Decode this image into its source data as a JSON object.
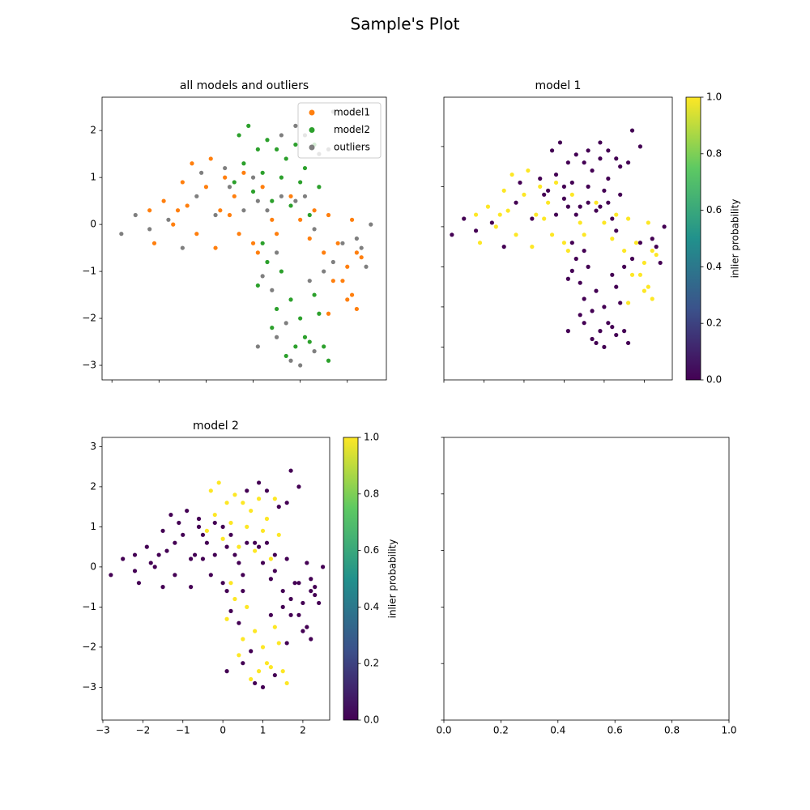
{
  "title": "Sample's Plot",
  "chart_data": [
    {
      "type": "scatter",
      "title": "all models and outliers",
      "legend": "upper right",
      "xlim": [
        -3.21,
        2.83
      ],
      "ylim": [
        -3.31,
        2.71
      ],
      "xticks": [
        -3,
        -2,
        -1,
        0,
        1,
        2
      ],
      "xtick_labels": false,
      "yticks": [
        {
          "value": -3,
          "label": "−3"
        },
        {
          "value": -2,
          "label": "−2"
        },
        {
          "value": -1,
          "label": "−1"
        },
        0,
        1,
        2
      ],
      "ytick_labels": true,
      "series": [
        {
          "name": "model1",
          "color": "#ff7f0e",
          "x": [
            -2.2,
            -2.1,
            -1.9,
            -1.7,
            -1.5,
            -1.4,
            -1.3,
            -1.2,
            -1.0,
            -0.9,
            -0.8,
            -0.7,
            -0.6,
            -0.4,
            -0.3,
            -0.2,
            0.0,
            0.2,
            0.4,
            0.5,
            0.8,
            1.0,
            1.2,
            1.3,
            1.5,
            1.6,
            1.8,
            1.9,
            2.0,
            2.1,
            2.2,
            1.6,
            2.2,
            2.0,
            2.1,
            2.3,
            1.7,
            0.1,
            -0.5,
            -1.6
          ],
          "y": [
            0.3,
            -0.4,
            0.5,
            0.0,
            0.9,
            0.4,
            1.3,
            -0.2,
            0.8,
            1.4,
            -0.5,
            0.3,
            1.0,
            0.6,
            -0.2,
            1.1,
            -0.4,
            0.8,
            0.1,
            -0.2,
            0.6,
            0.1,
            -0.3,
            0.3,
            -0.6,
            0.2,
            -0.4,
            -1.2,
            -0.9,
            -1.5,
            -0.6,
            -1.9,
            -1.8,
            -1.6,
            0.1,
            -0.7,
            -1.2,
            -0.6,
            0.2,
            0.3
          ]
        },
        {
          "name": "model2",
          "color": "#2ca02c",
          "x": [
            -0.3,
            -0.1,
            0.1,
            0.3,
            0.5,
            0.7,
            0.9,
            1.1,
            1.3,
            -0.2,
            0.2,
            0.6,
            1.0,
            0.8,
            1.2,
            0.4,
            -0.4,
            0.0,
            1.4,
            0.3,
            0.1,
            0.6,
            0.5,
            0.4,
            0.8,
            1.0,
            1.3,
            1.4,
            1.1,
            0.9,
            1.5,
            1.6,
            0.7,
            1.2,
            0.2
          ],
          "y": [
            1.9,
            2.1,
            1.6,
            1.8,
            1.6,
            1.4,
            1.7,
            1.2,
            1.7,
            1.3,
            1.1,
            1.0,
            0.9,
            0.4,
            0.2,
            0.5,
            0.9,
            0.7,
            0.8,
            -0.8,
            -1.3,
            -1.0,
            -1.8,
            -2.2,
            -1.6,
            -2.0,
            -1.5,
            -1.9,
            -2.4,
            -2.6,
            -2.6,
            -2.9,
            -2.8,
            -2.5,
            -0.4
          ]
        },
        {
          "name": "outliers",
          "color": "#7f7f7f",
          "x": [
            -2.8,
            -2.5,
            -2.2,
            -1.8,
            -1.5,
            -1.2,
            -1.1,
            -0.8,
            -0.5,
            -0.2,
            0.1,
            0.3,
            0.6,
            0.9,
            1.1,
            1.3,
            1.5,
            1.7,
            1.9,
            2.2,
            2.4,
            2.5,
            2.3,
            0.5,
            0.2,
            0.4,
            0.7,
            0.1,
            0.5,
            0.8,
            1.0,
            1.3,
            1.2,
            0.6,
            0.9,
            1.1,
            1.4,
            1.7,
            1.6,
            1.9,
            -0.6,
            0.0
          ],
          "y": [
            -0.2,
            0.2,
            -0.1,
            0.1,
            -0.5,
            0.6,
            1.1,
            0.2,
            0.8,
            0.3,
            0.5,
            0.3,
            0.6,
            0.5,
            0.6,
            -0.1,
            -1.0,
            -0.8,
            -0.4,
            -0.3,
            -0.9,
            0.0,
            -0.5,
            -0.6,
            -1.1,
            -1.4,
            -2.1,
            -2.6,
            -2.4,
            -2.9,
            -3.0,
            -2.7,
            -1.2,
            1.9,
            2.1,
            1.9,
            1.5,
            2.4,
            1.6,
            2.0,
            1.2,
            1.0
          ]
        }
      ]
    },
    {
      "type": "scatter",
      "title": "model 1",
      "colormap": "viridis",
      "xlim": [
        -3.0,
        2.7
      ],
      "ylim": [
        -3.82,
        3.23
      ],
      "xticks": [
        -3,
        -2,
        -1,
        0,
        1,
        2
      ],
      "xtick_labels": false,
      "yticks": [
        -3,
        -2,
        -1,
        0,
        1,
        2
      ],
      "ytick_labels": false,
      "x": [
        -2.2,
        -2.1,
        -1.9,
        -1.7,
        -1.5,
        -1.4,
        -1.3,
        -1.2,
        -1.0,
        -0.9,
        -0.8,
        -0.7,
        -0.6,
        -0.4,
        -0.3,
        -0.2,
        0.0,
        0.2,
        0.4,
        0.5,
        0.8,
        1.0,
        1.2,
        1.3,
        1.5,
        1.6,
        1.8,
        1.9,
        2.0,
        2.1,
        2.2,
        1.6,
        2.2,
        2.0,
        2.1,
        2.3,
        1.7,
        0.1,
        -0.5,
        -1.6,
        -0.3,
        -0.1,
        0.1,
        0.3,
        0.5,
        0.7,
        0.9,
        1.1,
        1.3,
        -0.2,
        0.2,
        0.6,
        1.0,
        0.8,
        1.2,
        0.4,
        -0.4,
        0.0,
        1.4,
        0.3,
        0.1,
        0.6,
        0.5,
        0.4,
        0.8,
        1.0,
        1.3,
        1.4,
        1.1,
        0.9,
        1.5,
        1.6,
        0.7,
        1.2,
        0.2,
        -2.8,
        -2.5,
        -2.2,
        -1.8,
        -1.5,
        -1.2,
        -1.1,
        -0.8,
        -0.5,
        -0.2,
        0.1,
        0.3,
        0.6,
        0.9,
        1.1,
        1.3,
        1.5,
        1.7,
        1.9,
        2.2,
        2.4,
        2.5,
        2.3,
        0.5,
        0.2,
        0.4,
        0.7,
        0.1,
        0.5,
        0.8,
        1.0,
        1.3,
        1.2,
        0.6,
        0.9,
        1.1,
        1.4,
        1.7,
        1.6,
        1.9,
        -0.6,
        0.0
      ],
      "y": [
        0.3,
        -0.4,
        0.5,
        0.0,
        0.9,
        0.4,
        1.3,
        -0.2,
        0.8,
        1.4,
        -0.5,
        0.3,
        1.0,
        0.6,
        -0.2,
        1.1,
        -0.4,
        0.8,
        0.1,
        -0.2,
        0.6,
        0.1,
        -0.3,
        0.3,
        -0.6,
        0.2,
        -0.4,
        -1.2,
        -0.9,
        -1.5,
        -0.6,
        -1.9,
        -1.8,
        -1.6,
        0.1,
        -0.7,
        -1.2,
        -0.6,
        0.2,
        0.3,
        1.9,
        2.1,
        1.6,
        1.8,
        1.6,
        1.4,
        1.7,
        1.2,
        1.7,
        1.3,
        1.1,
        1.0,
        0.9,
        0.4,
        0.2,
        0.5,
        0.9,
        0.7,
        0.8,
        -0.8,
        -1.3,
        -1.0,
        -1.8,
        -2.2,
        -1.6,
        -2.0,
        -1.5,
        -1.9,
        -2.4,
        -2.6,
        -2.6,
        -2.9,
        -2.8,
        -2.5,
        -0.4,
        -0.2,
        0.2,
        -0.1,
        0.1,
        -0.5,
        0.6,
        1.1,
        0.2,
        0.8,
        0.3,
        0.5,
        0.3,
        0.6,
        0.5,
        0.6,
        -0.1,
        -1.0,
        -0.8,
        -0.4,
        -0.3,
        -0.9,
        0.0,
        -0.5,
        -0.6,
        -1.1,
        -1.4,
        -2.1,
        -2.6,
        -2.4,
        -2.9,
        -3.0,
        -2.7,
        -1.2,
        1.9,
        2.1,
        1.9,
        1.5,
        2.4,
        1.6,
        2.0,
        1.2,
        1.0
      ],
      "values": [
        1,
        1,
        1,
        1,
        1,
        1,
        1,
        1,
        1,
        1,
        1,
        1,
        1,
        1,
        1,
        1,
        1,
        1,
        1,
        1,
        1,
        1,
        1,
        1,
        1,
        1,
        1,
        1,
        1,
        1,
        1,
        1,
        1,
        1,
        1,
        1,
        1,
        1,
        1,
        1,
        0,
        0,
        0,
        0,
        0,
        0,
        0,
        0,
        0,
        0,
        0,
        0,
        0,
        0,
        0,
        0,
        0,
        0,
        0,
        0,
        0,
        0,
        0,
        0,
        0,
        0,
        0,
        0,
        0,
        0,
        0,
        0,
        0,
        0,
        0,
        0,
        0,
        0,
        0,
        0,
        0,
        0,
        0,
        0,
        0,
        0,
        0,
        0,
        0,
        0,
        0,
        0,
        0,
        0,
        0,
        0,
        0,
        0,
        0,
        0,
        0,
        0,
        0,
        0,
        0,
        0,
        0,
        0,
        0,
        0,
        0,
        0,
        0,
        0,
        0,
        0,
        0
      ],
      "colorbar": {
        "label": "inlier probability",
        "lim": [
          0,
          1
        ],
        "ticks": [
          {
            "value": 0,
            "label": "0.0"
          },
          {
            "value": 0.2,
            "label": "0.2"
          },
          {
            "value": 0.4,
            "label": "0.4"
          },
          {
            "value": 0.6,
            "label": "0.6"
          },
          {
            "value": 0.8,
            "label": "0.8"
          },
          {
            "value": 1,
            "label": "1.0"
          }
        ]
      }
    },
    {
      "type": "scatter",
      "title": "model 2",
      "colormap": "viridis",
      "xlim": [
        -3.02,
        2.67
      ],
      "ylim": [
        -3.82,
        3.23
      ],
      "xticks": [
        {
          "value": -3,
          "label": "−3"
        },
        {
          "value": -2,
          "label": "−2"
        },
        {
          "value": -1,
          "label": "−1"
        },
        0,
        1,
        2
      ],
      "xtick_labels": true,
      "yticks": [
        {
          "value": -3,
          "label": "−3"
        },
        {
          "value": -2,
          "label": "−2"
        },
        {
          "value": -1,
          "label": "−1"
        },
        0,
        1,
        2,
        3
      ],
      "ytick_labels": true,
      "x": [
        -2.2,
        -2.1,
        -1.9,
        -1.7,
        -1.5,
        -1.4,
        -1.3,
        -1.2,
        -1.0,
        -0.9,
        -0.8,
        -0.7,
        -0.6,
        -0.4,
        -0.3,
        -0.2,
        0.0,
        0.2,
        0.4,
        0.5,
        0.8,
        1.0,
        1.2,
        1.3,
        1.5,
        1.6,
        1.8,
        1.9,
        2.0,
        2.1,
        2.2,
        1.6,
        2.2,
        2.0,
        2.1,
        2.3,
        1.7,
        0.1,
        -0.5,
        -1.6,
        -0.3,
        -0.1,
        0.1,
        0.3,
        0.5,
        0.7,
        0.9,
        1.1,
        1.3,
        -0.2,
        0.2,
        0.6,
        1.0,
        0.8,
        1.2,
        0.4,
        -0.4,
        0.0,
        1.4,
        0.3,
        0.1,
        0.6,
        0.5,
        0.4,
        0.8,
        1.0,
        1.3,
        1.4,
        1.1,
        0.9,
        1.5,
        1.6,
        0.7,
        1.2,
        0.2,
        -2.8,
        -2.5,
        -2.2,
        -1.8,
        -1.5,
        -1.2,
        -1.1,
        -0.8,
        -0.5,
        -0.2,
        0.1,
        0.3,
        0.6,
        0.9,
        1.1,
        1.3,
        1.5,
        1.7,
        1.9,
        2.2,
        2.4,
        2.5,
        2.3,
        0.5,
        0.2,
        0.4,
        0.7,
        0.1,
        0.5,
        0.8,
        1.0,
        1.3,
        1.2,
        0.6,
        0.9,
        1.1,
        1.4,
        1.7,
        1.6,
        1.9,
        -0.6,
        0.0
      ],
      "y": [
        0.3,
        -0.4,
        0.5,
        0.0,
        0.9,
        0.4,
        1.3,
        -0.2,
        0.8,
        1.4,
        -0.5,
        0.3,
        1.0,
        0.6,
        -0.2,
        1.1,
        -0.4,
        0.8,
        0.1,
        -0.2,
        0.6,
        0.1,
        -0.3,
        0.3,
        -0.6,
        0.2,
        -0.4,
        -1.2,
        -0.9,
        -1.5,
        -0.6,
        -1.9,
        -1.8,
        -1.6,
        0.1,
        -0.7,
        -1.2,
        -0.6,
        0.2,
        0.3,
        1.9,
        2.1,
        1.6,
        1.8,
        1.6,
        1.4,
        1.7,
        1.2,
        1.7,
        1.3,
        1.1,
        1.0,
        0.9,
        0.4,
        0.2,
        0.5,
        0.9,
        0.7,
        0.8,
        -0.8,
        -1.3,
        -1.0,
        -1.8,
        -2.2,
        -1.6,
        -2.0,
        -1.5,
        -1.9,
        -2.4,
        -2.6,
        -2.6,
        -2.9,
        -2.8,
        -2.5,
        -0.4,
        -0.2,
        0.2,
        -0.1,
        0.1,
        -0.5,
        0.6,
        1.1,
        0.2,
        0.8,
        0.3,
        0.5,
        0.3,
        0.6,
        0.5,
        0.6,
        -0.1,
        -1.0,
        -0.8,
        -0.4,
        -0.3,
        -0.9,
        0.0,
        -0.5,
        -0.6,
        -1.1,
        -1.4,
        -2.1,
        -2.6,
        -2.4,
        -2.9,
        -3.0,
        -2.7,
        -1.2,
        1.9,
        2.1,
        1.9,
        1.5,
        2.4,
        1.6,
        2.0,
        1.2,
        1.0
      ],
      "values": [
        0,
        0,
        0,
        0,
        0,
        0,
        0,
        0,
        0,
        0,
        0,
        0,
        0,
        0,
        0,
        0,
        0,
        0,
        0,
        0,
        0,
        0,
        0,
        0,
        0,
        0,
        0,
        0,
        0,
        0,
        0,
        0,
        0,
        0,
        0,
        0,
        0,
        0,
        0,
        0,
        1,
        1,
        1,
        1,
        1,
        1,
        1,
        1,
        1,
        1,
        1,
        1,
        1,
        1,
        1,
        1,
        1,
        1,
        1,
        1,
        1,
        1,
        1,
        1,
        1,
        1,
        1,
        1,
        1,
        1,
        1,
        1,
        1,
        1,
        1,
        0,
        0,
        0,
        0,
        0,
        0,
        0,
        0,
        0,
        0,
        0,
        0,
        0,
        0,
        0,
        0,
        0,
        0,
        0,
        0,
        0,
        0,
        0,
        0,
        0,
        0,
        0,
        0,
        0,
        0,
        0,
        0,
        0,
        0,
        0,
        0,
        0,
        0,
        0,
        0,
        0,
        0
      ],
      "colorbar": {
        "label": "inlier probability",
        "lim": [
          0,
          1
        ],
        "ticks": [
          {
            "value": 0,
            "label": "0.0"
          },
          {
            "value": 0.2,
            "label": "0.2"
          },
          {
            "value": 0.4,
            "label": "0.4"
          },
          {
            "value": 0.6,
            "label": "0.6"
          },
          {
            "value": 0.8,
            "label": "0.8"
          },
          {
            "value": 1,
            "label": "1.0"
          }
        ]
      }
    },
    {
      "type": "empty",
      "xlim": [
        0,
        1
      ],
      "ylim": [
        0,
        1
      ],
      "xticks": [
        {
          "value": 0,
          "label": "0.0"
        },
        {
          "value": 0.2,
          "label": "0.2"
        },
        {
          "value": 0.4,
          "label": "0.4"
        },
        {
          "value": 0.6,
          "label": "0.6"
        },
        {
          "value": 0.8,
          "label": "0.8"
        },
        {
          "value": 1,
          "label": "1.0"
        }
      ],
      "xtick_labels": true,
      "yticks": [
        0,
        0.2,
        0.4,
        0.6,
        0.8,
        1
      ],
      "ytick_labels": false
    }
  ]
}
